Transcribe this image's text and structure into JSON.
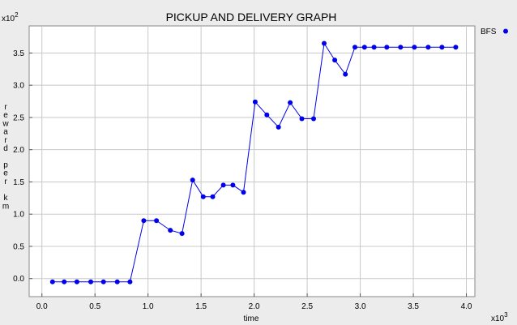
{
  "chart_data": {
    "type": "line",
    "title": "PICKUP AND DELIVERY GRAPH",
    "xlabel": "time",
    "ylabel": "reward per km",
    "x_multiplier": "x10",
    "x_exponent": "3",
    "y_multiplier": "x10",
    "y_exponent": "2",
    "xlim": [
      -0.12,
      4.08
    ],
    "ylim": [
      -0.28,
      3.92
    ],
    "xticks": [
      0.0,
      0.5,
      1.0,
      1.5,
      2.0,
      2.5,
      3.0,
      3.5,
      4.0
    ],
    "xtick_labels": [
      "0.0",
      "0.5",
      "1.0",
      "1.5",
      "2.0",
      "2.5",
      "3.0",
      "3.5",
      "4.0"
    ],
    "yticks": [
      0.0,
      0.5,
      1.0,
      1.5,
      2.0,
      2.5,
      3.0,
      3.5
    ],
    "ytick_labels": [
      "0.0",
      "0.5",
      "1.0",
      "1.5",
      "2.0",
      "2.5",
      "3.0",
      "3.5"
    ],
    "grid": true,
    "legend": "top-right",
    "series": [
      {
        "name": "BFS",
        "color": "#0000ee",
        "marker": "circle",
        "x": [
          0.1,
          0.21,
          0.33,
          0.46,
          0.58,
          0.71,
          0.83,
          0.96,
          1.08,
          1.21,
          1.32,
          1.42,
          1.52,
          1.61,
          1.71,
          1.8,
          1.9,
          2.01,
          2.12,
          2.23,
          2.34,
          2.45,
          2.56,
          2.66,
          2.76,
          2.86,
          2.95,
          3.04,
          3.13,
          3.25,
          3.38,
          3.51,
          3.64,
          3.77,
          3.9
        ],
        "y": [
          -0.05,
          -0.05,
          -0.05,
          -0.05,
          -0.05,
          -0.05,
          -0.05,
          0.9,
          0.9,
          0.75,
          0.7,
          1.53,
          1.27,
          1.27,
          1.45,
          1.45,
          1.34,
          2.74,
          2.54,
          2.35,
          2.73,
          2.48,
          2.48,
          3.65,
          3.39,
          3.17,
          3.59,
          3.59,
          3.59,
          3.59,
          3.59,
          3.59,
          3.59,
          3.59,
          3.59
        ]
      }
    ]
  }
}
